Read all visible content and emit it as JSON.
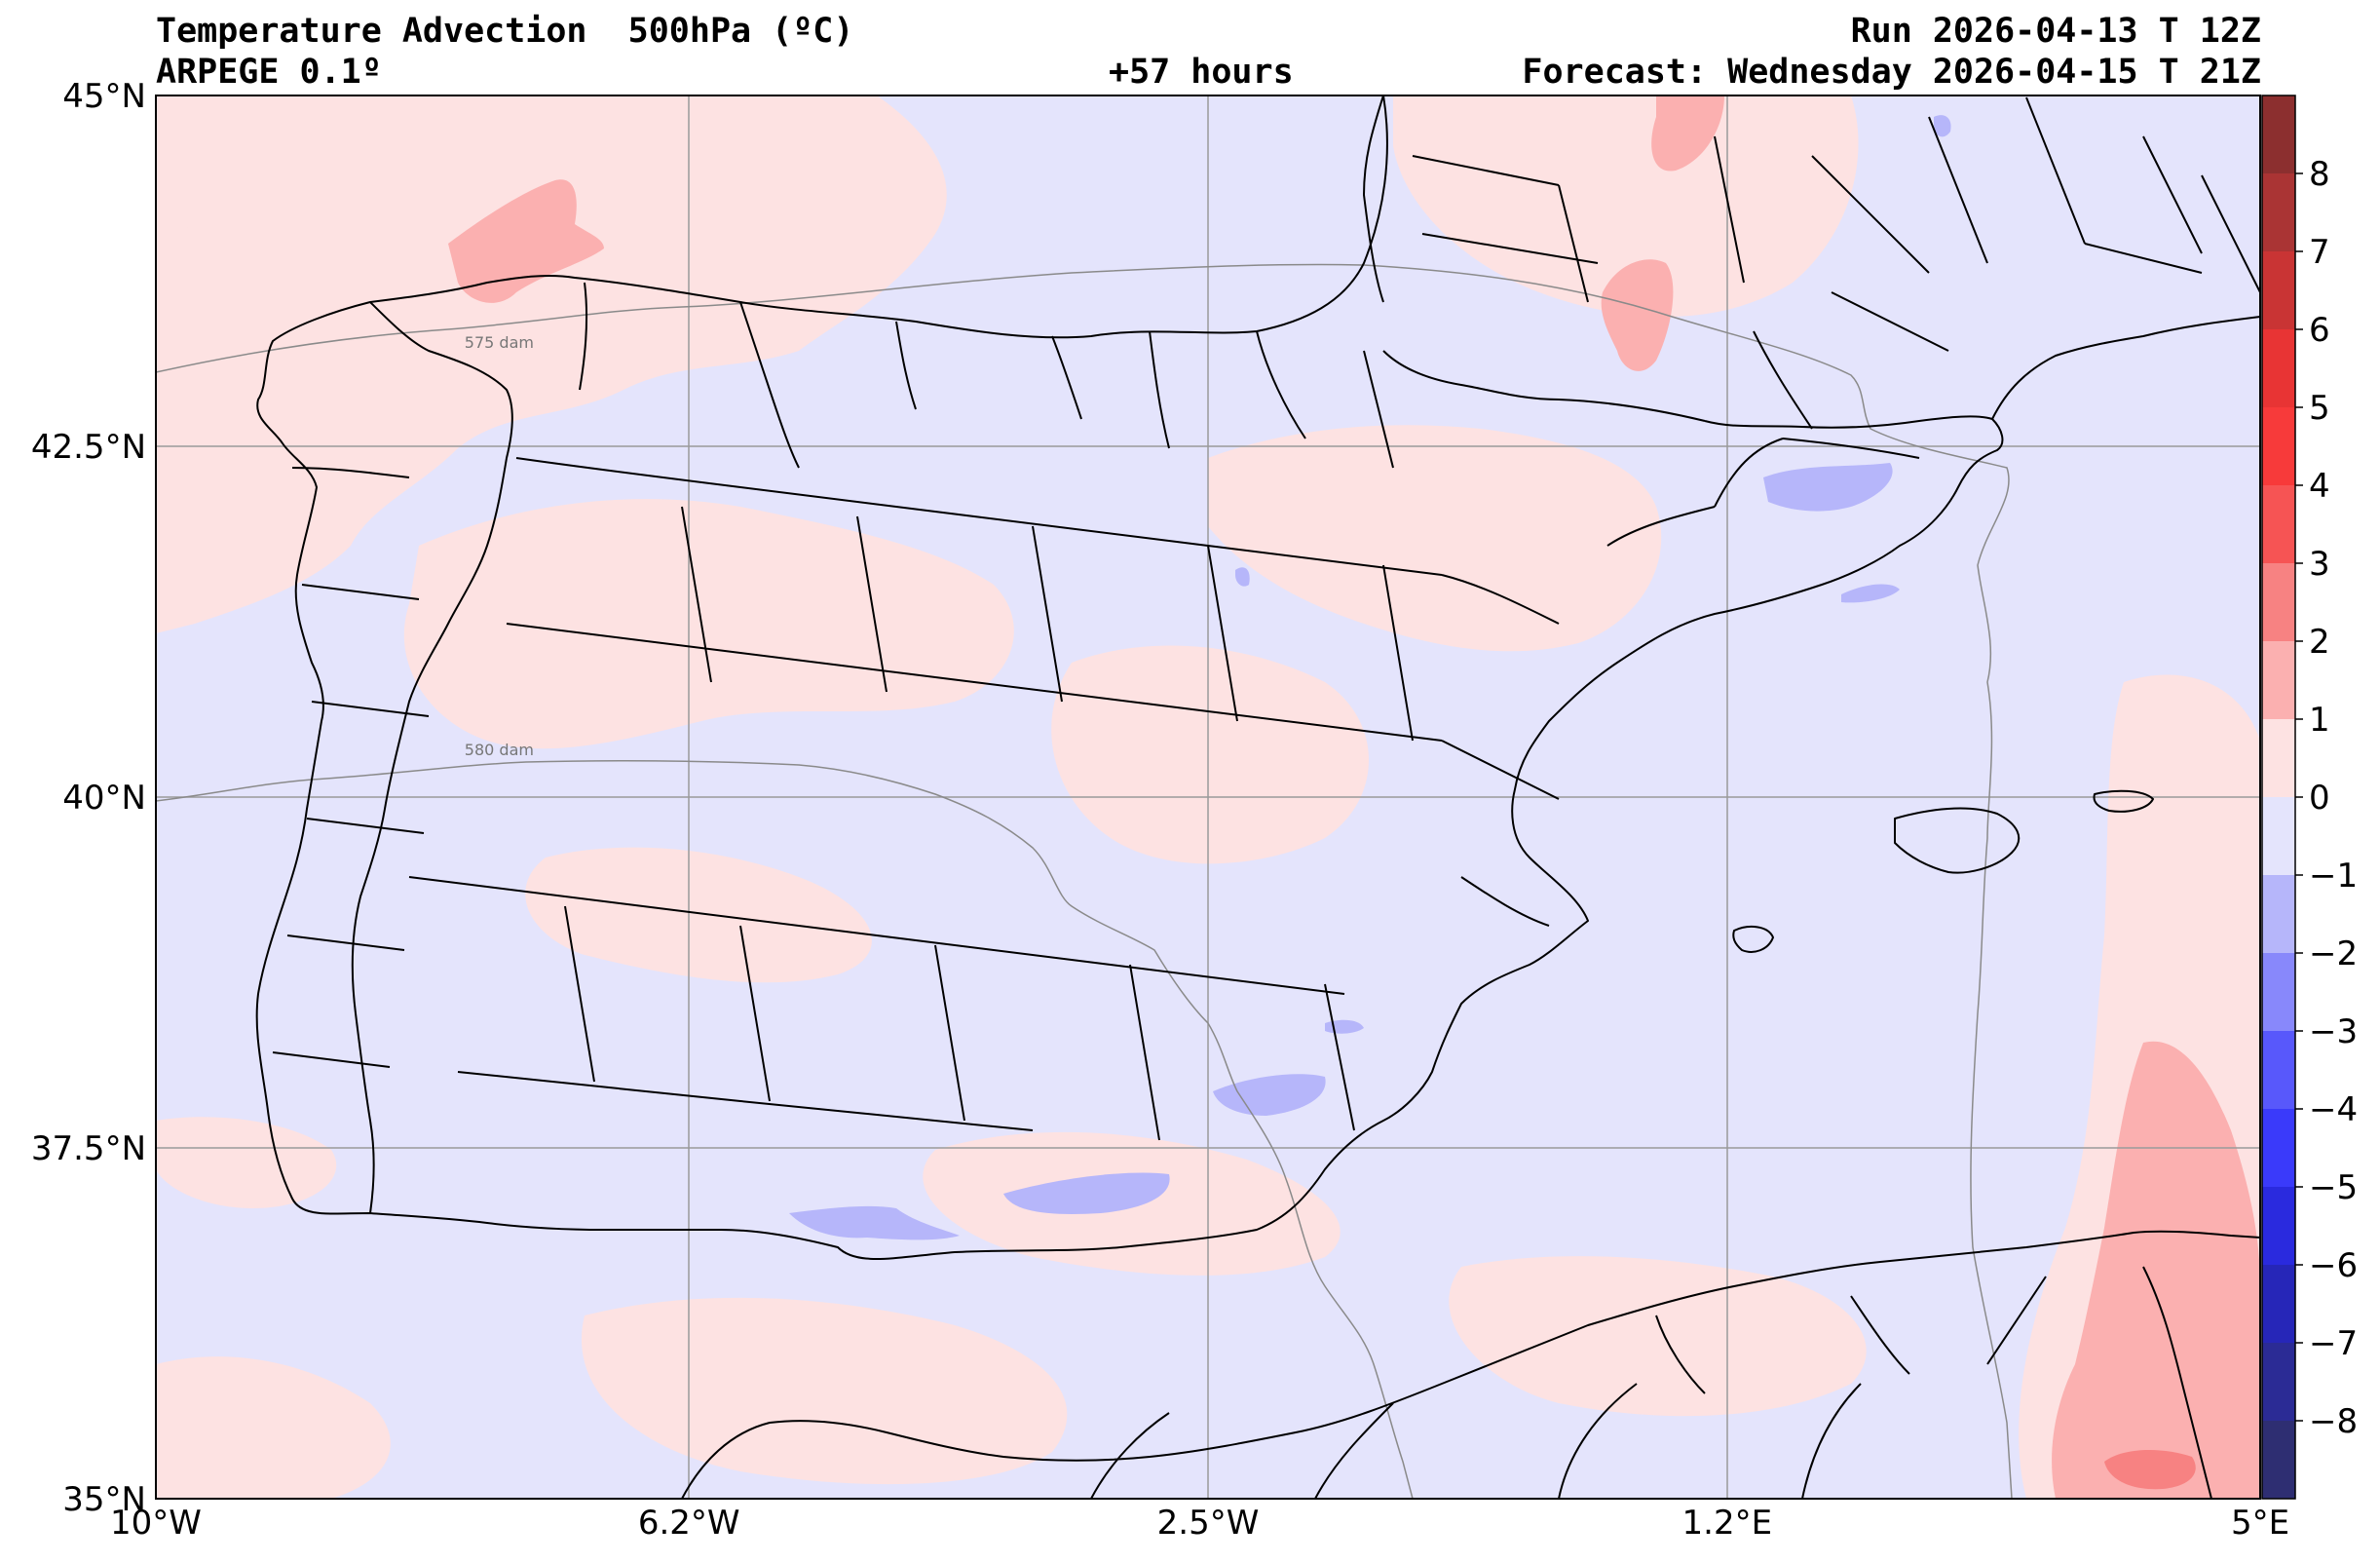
{
  "header": {
    "title": "Temperature Advection  500hPa (ºC)",
    "model": "ARPEGE 0.1º",
    "lead_time": "+57 hours",
    "run": "Run 2026-04-13 T 12Z",
    "forecast": "Forecast: Wednesday 2026-04-15 T 21Z"
  },
  "map": {
    "projection": "plate-carree",
    "lon_range": [
      -10,
      5
    ],
    "lat_range": [
      35,
      45
    ],
    "lon_ticks": [
      {
        "value": -10,
        "label": "10°W"
      },
      {
        "value": -6.2,
        "label": "6.2°W"
      },
      {
        "value": -2.5,
        "label": "2.5°W"
      },
      {
        "value": 1.2,
        "label": "1.2°E"
      },
      {
        "value": 5,
        "label": "5°E"
      }
    ],
    "lat_ticks": [
      {
        "value": 45,
        "label": "45°N"
      },
      {
        "value": 42.5,
        "label": "42.5°N"
      },
      {
        "value": 40,
        "label": "40°N"
      },
      {
        "value": 37.5,
        "label": "37.5°N"
      },
      {
        "value": 35,
        "label": "35°N"
      }
    ],
    "gridlines": true,
    "contour_labels": [
      {
        "text": "575 dam",
        "lon": -7.8,
        "lat": 43.2
      },
      {
        "text": "580 dam",
        "lon": -7.8,
        "lat": 40.3
      }
    ],
    "colors": {
      "background_negative": "#e4e4fc",
      "background_positive": "#fde2e2",
      "warm_1_2": "#fbb0b0",
      "warm_2_3": "#f78282",
      "cold_1_2": "#b6b6fa"
    }
  },
  "colorbar": {
    "levels": [
      -9,
      -8,
      -7,
      -6,
      -5,
      -4,
      -3,
      -2,
      -1,
      0,
      1,
      2,
      3,
      4,
      5,
      6,
      7,
      8,
      9
    ],
    "tick_values": [
      8,
      7,
      6,
      5,
      4,
      3,
      2,
      1,
      0,
      -1,
      -2,
      -3,
      -4,
      -5,
      -6,
      -7,
      -8
    ],
    "tick_labels": [
      "8",
      "7",
      "6",
      "5",
      "4",
      "3",
      "2",
      "1",
      "0",
      "−1",
      "−2",
      "−3",
      "−4",
      "−5",
      "−6",
      "−7",
      "−8"
    ],
    "colors": [
      "#2e2e72",
      "#2b2b95",
      "#2626b8",
      "#2a2ade",
      "#3a3afa",
      "#5858fb",
      "#8888fb",
      "#b6b6fa",
      "#e4e4fc",
      "#fde2e2",
      "#fbb0b0",
      "#f78282",
      "#f65454",
      "#f73a3a",
      "#e83434",
      "#c93434",
      "#aa3434",
      "#8c2f2f"
    ]
  }
}
